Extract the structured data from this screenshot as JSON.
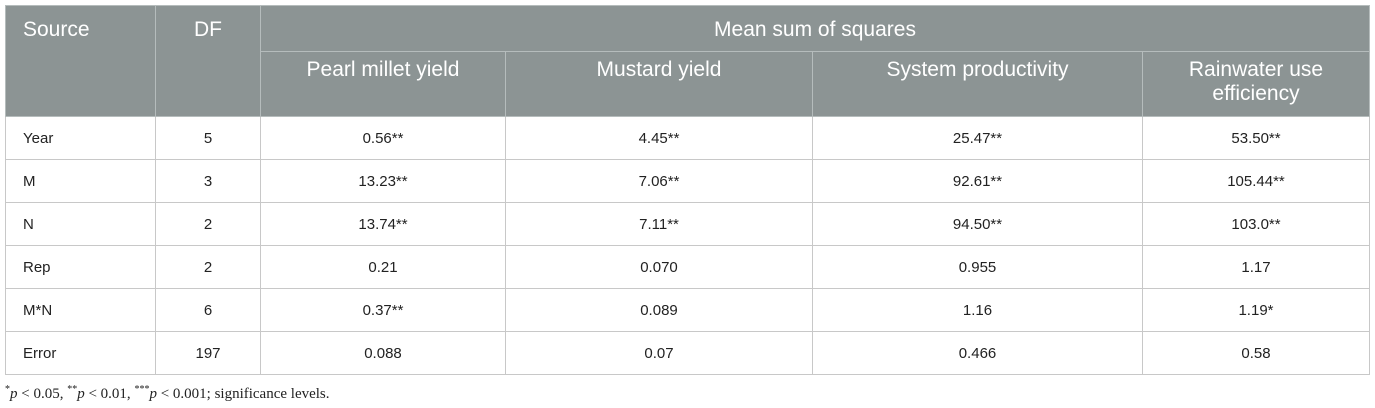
{
  "header": {
    "source": "Source",
    "df": "DF",
    "group": "Mean sum of squares",
    "columns": [
      "Pearl millet yield",
      "Mustard yield",
      "System productivity",
      "Rainwater use efficiency"
    ]
  },
  "table": {
    "rows": [
      [
        "Year",
        "5",
        "0.56**",
        "4.45**",
        "25.47**",
        "53.50**"
      ],
      [
        "M",
        "3",
        "13.23**",
        "7.06**",
        "92.61**",
        "105.44**"
      ],
      [
        "N",
        "2",
        "13.74**",
        "7.11**",
        "94.50**",
        "103.0**"
      ],
      [
        "Rep",
        "2",
        "0.21",
        "0.070",
        "0.955",
        "1.17"
      ],
      [
        "M*N",
        "6",
        "0.37**",
        "0.089",
        "1.16",
        "1.19*"
      ],
      [
        "Error",
        "197",
        "0.088",
        "0.07",
        "0.466",
        "0.58"
      ]
    ]
  },
  "footnote": [
    "*",
    "p",
    " < 0.05, ",
    "**",
    "p",
    " < 0.01, ",
    "***",
    "p",
    " < 0.001; significance levels."
  ]
}
